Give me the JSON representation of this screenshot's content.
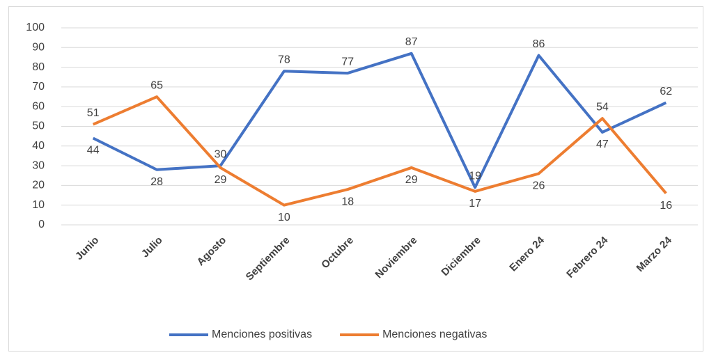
{
  "chart_data": {
    "type": "line",
    "categories": [
      "Junio",
      "Julio",
      "Agosto",
      "Septiembre",
      "Octubre",
      "Noviembre",
      "Diciembre",
      "Enero 24",
      "Febrero 24",
      "Marzo 24"
    ],
    "series": [
      {
        "name": "Menciones positivas",
        "color": "#4472c4",
        "values": [
          44,
          28,
          30,
          78,
          77,
          87,
          19,
          86,
          47,
          62
        ]
      },
      {
        "name": "Menciones negativas",
        "color": "#ed7d31",
        "values": [
          51,
          65,
          29,
          10,
          18,
          29,
          17,
          26,
          54,
          16
        ]
      }
    ],
    "ylim": [
      0,
      100
    ],
    "yticks": [
      0,
      10,
      20,
      30,
      40,
      50,
      60,
      70,
      80,
      90,
      100
    ],
    "grid": true,
    "legend": "bottom"
  }
}
